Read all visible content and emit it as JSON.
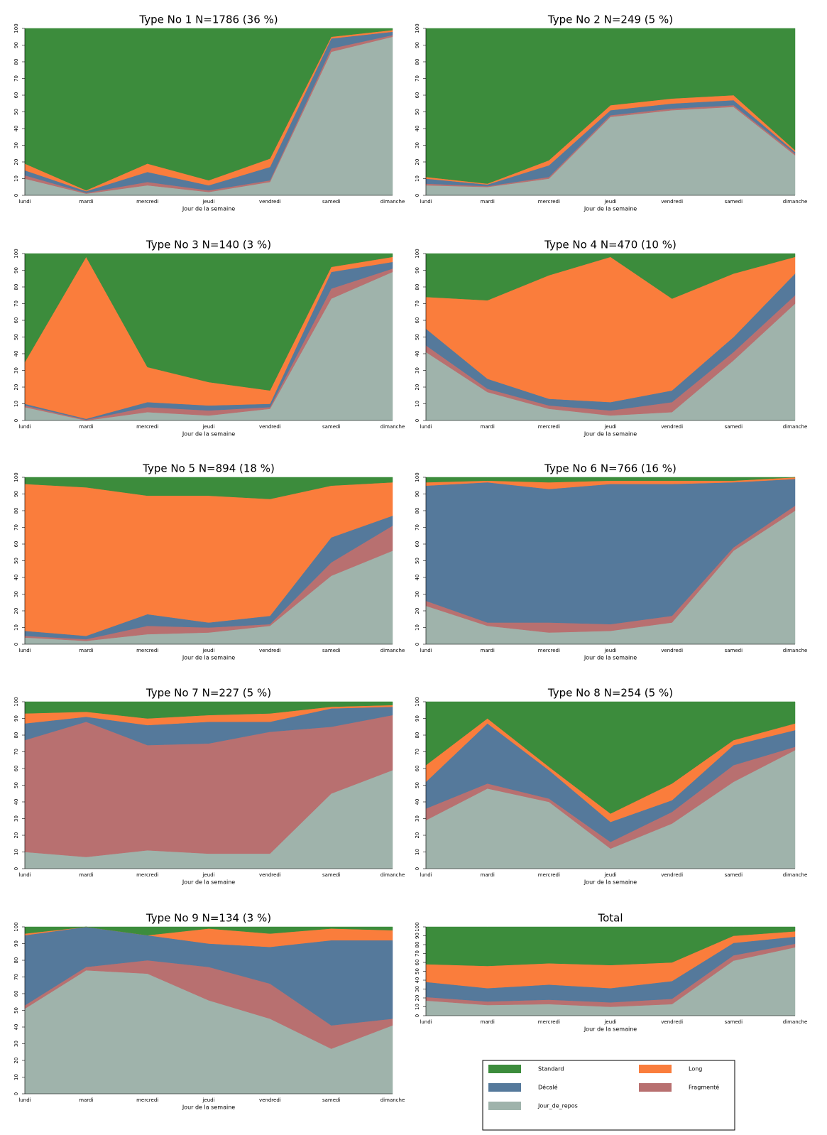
{
  "chart_data": [
    {
      "type": "area",
      "title": "Type No 1 N=1786 (36 %)",
      "xlabel": "Jour de la semaine",
      "categories": [
        "lundi",
        "mardi",
        "mercredi",
        "jeudi",
        "vendredi",
        "samedi",
        "dimanche"
      ],
      "ylim": [
        0,
        100
      ],
      "yticks": [
        0,
        10,
        20,
        30,
        40,
        50,
        60,
        70,
        80,
        90,
        100
      ],
      "series": [
        {
          "name": "Jour_de_repos",
          "color": "#9fb3ab",
          "values": [
            10,
            1,
            6,
            2,
            8,
            86,
            95
          ]
        },
        {
          "name": "Fragmenté",
          "color": "#b87070",
          "values": [
            2,
            0.5,
            2,
            1,
            1,
            2,
            1
          ]
        },
        {
          "name": "Décalé",
          "color": "#55799b",
          "values": [
            3,
            1,
            6,
            3,
            8,
            6,
            2
          ]
        },
        {
          "name": "Long",
          "color": "#fa7d3c",
          "values": [
            4,
            0.5,
            5,
            3,
            5,
            1,
            1
          ]
        },
        {
          "name": "Standard",
          "color": "#3c8c3c",
          "values": [
            81,
            97,
            81,
            91,
            78,
            5,
            1
          ]
        }
      ]
    },
    {
      "type": "area",
      "title": "Type No 2 N=249 (5 %)",
      "xlabel": "Jour de la semaine",
      "categories": [
        "lundi",
        "mardi",
        "mercredi",
        "jeudi",
        "vendredi",
        "samedi",
        "dimanche"
      ],
      "ylim": [
        0,
        100
      ],
      "yticks": [
        0,
        10,
        20,
        30,
        40,
        50,
        60,
        70,
        80,
        90,
        100
      ],
      "series": [
        {
          "name": "Jour_de_repos",
          "color": "#9fb3ab",
          "values": [
            6,
            5,
            10,
            47,
            51,
            53,
            24
          ]
        },
        {
          "name": "Fragmenté",
          "color": "#b87070",
          "values": [
            1,
            0.5,
            1,
            1,
            1,
            1,
            1
          ]
        },
        {
          "name": "Décalé",
          "color": "#55799b",
          "values": [
            3,
            1,
            7,
            3,
            3,
            3,
            1
          ]
        },
        {
          "name": "Long",
          "color": "#fa7d3c",
          "values": [
            1,
            0.5,
            3,
            3,
            3,
            3,
            1
          ]
        },
        {
          "name": "Standard",
          "color": "#3c8c3c",
          "values": [
            89,
            93,
            79,
            46,
            42,
            40,
            73
          ]
        }
      ]
    },
    {
      "type": "area",
      "title": "Type No 3 N=140 (3 %)",
      "xlabel": "Jour de la semaine",
      "categories": [
        "lundi",
        "mardi",
        "mercredi",
        "jeudi",
        "vendredi",
        "samedi",
        "dimanche"
      ],
      "ylim": [
        0,
        100
      ],
      "yticks": [
        0,
        10,
        20,
        30,
        40,
        50,
        60,
        70,
        80,
        90,
        100
      ],
      "series": [
        {
          "name": "Jour_de_repos",
          "color": "#9fb3ab",
          "values": [
            8,
            0,
            5,
            3,
            7,
            73,
            89
          ]
        },
        {
          "name": "Fragmenté",
          "color": "#b87070",
          "values": [
            1,
            0.5,
            3,
            3,
            1,
            6,
            2
          ]
        },
        {
          "name": "Décalé",
          "color": "#55799b",
          "values": [
            1,
            0.5,
            3,
            3,
            2,
            10,
            4
          ]
        },
        {
          "name": "Long",
          "color": "#fa7d3c",
          "values": [
            25,
            97,
            21,
            14,
            8,
            3,
            3
          ]
        },
        {
          "name": "Standard",
          "color": "#3c8c3c",
          "values": [
            65,
            2,
            68,
            77,
            82,
            8,
            2
          ]
        }
      ]
    },
    {
      "type": "area",
      "title": "Type No 4 N=470 (10 %)",
      "xlabel": "Jour de la semaine",
      "categories": [
        "lundi",
        "mardi",
        "mercredi",
        "jeudi",
        "vendredi",
        "samedi",
        "dimanche"
      ],
      "ylim": [
        0,
        100
      ],
      "yticks": [
        0,
        10,
        20,
        30,
        40,
        50,
        60,
        70,
        80,
        90,
        100
      ],
      "series": [
        {
          "name": "Jour_de_repos",
          "color": "#9fb3ab",
          "values": [
            41,
            17,
            7,
            3,
            5,
            36,
            70
          ]
        },
        {
          "name": "Fragmenté",
          "color": "#b87070",
          "values": [
            4,
            2,
            2,
            3,
            6,
            5,
            5
          ]
        },
        {
          "name": "Décalé",
          "color": "#55799b",
          "values": [
            10,
            6,
            4,
            5,
            7,
            9,
            13
          ]
        },
        {
          "name": "Long",
          "color": "#fa7d3c",
          "values": [
            19,
            47,
            74,
            87,
            55,
            38,
            10
          ]
        },
        {
          "name": "Standard",
          "color": "#3c8c3c",
          "values": [
            26,
            28,
            13,
            2,
            27,
            12,
            2
          ]
        }
      ]
    },
    {
      "type": "area",
      "title": "Type No 5 N=894 (18 %)",
      "xlabel": "Jour de la semaine",
      "categories": [
        "lundi",
        "mardi",
        "mercredi",
        "jeudi",
        "vendredi",
        "samedi",
        "dimanche"
      ],
      "ylim": [
        0,
        100
      ],
      "yticks": [
        0,
        10,
        20,
        30,
        40,
        50,
        60,
        70,
        80,
        90,
        100
      ],
      "series": [
        {
          "name": "Jour_de_repos",
          "color": "#9fb3ab",
          "values": [
            4,
            2,
            6,
            7,
            11,
            41,
            56
          ]
        },
        {
          "name": "Fragmenté",
          "color": "#b87070",
          "values": [
            1,
            1,
            5,
            3,
            1,
            8,
            15
          ]
        },
        {
          "name": "Décalé",
          "color": "#55799b",
          "values": [
            3,
            2,
            7,
            3,
            5,
            15,
            6
          ]
        },
        {
          "name": "Long",
          "color": "#fa7d3c",
          "values": [
            88,
            89,
            71,
            76,
            70,
            31,
            20
          ]
        },
        {
          "name": "Standard",
          "color": "#3c8c3c",
          "values": [
            4,
            6,
            11,
            11,
            13,
            5,
            3
          ]
        }
      ]
    },
    {
      "type": "area",
      "title": "Type No 6 N=766 (16 %)",
      "xlabel": "Jour de la semaine",
      "categories": [
        "lundi",
        "mardi",
        "mercredi",
        "jeudi",
        "vendredi",
        "samedi",
        "dimanche"
      ],
      "ylim": [
        0,
        100
      ],
      "yticks": [
        0,
        10,
        20,
        30,
        40,
        50,
        60,
        70,
        80,
        90,
        100
      ],
      "series": [
        {
          "name": "Jour_de_repos",
          "color": "#9fb3ab",
          "values": [
            23,
            11,
            7,
            8,
            13,
            56,
            80
          ]
        },
        {
          "name": "Fragmenté",
          "color": "#b87070",
          "values": [
            3,
            2,
            6,
            4,
            4,
            2,
            3
          ]
        },
        {
          "name": "Décalé",
          "color": "#55799b",
          "values": [
            69,
            84,
            80,
            84,
            79,
            39,
            16
          ]
        },
        {
          "name": "Long",
          "color": "#fa7d3c",
          "values": [
            2,
            1,
            4,
            2,
            2,
            1,
            1
          ]
        },
        {
          "name": "Standard",
          "color": "#3c8c3c",
          "values": [
            3,
            2,
            3,
            2,
            2,
            2,
            0
          ]
        }
      ]
    },
    {
      "type": "area",
      "title": "Type No 7 N=227 (5 %)",
      "xlabel": "Jour de la semaine",
      "categories": [
        "lundi",
        "mardi",
        "mercredi",
        "jeudi",
        "vendredi",
        "samedi",
        "dimanche"
      ],
      "ylim": [
        0,
        100
      ],
      "yticks": [
        0,
        10,
        20,
        30,
        40,
        50,
        60,
        70,
        80,
        90,
        100
      ],
      "series": [
        {
          "name": "Jour_de_repos",
          "color": "#9fb3ab",
          "values": [
            10,
            7,
            11,
            9,
            9,
            45,
            59
          ]
        },
        {
          "name": "Fragmenté",
          "color": "#b87070",
          "values": [
            67,
            81,
            63,
            66,
            73,
            40,
            33
          ]
        },
        {
          "name": "Décalé",
          "color": "#55799b",
          "values": [
            10,
            3,
            12,
            13,
            6,
            11,
            5
          ]
        },
        {
          "name": "Long",
          "color": "#fa7d3c",
          "values": [
            6,
            3,
            4,
            4,
            5,
            1,
            1
          ]
        },
        {
          "name": "Standard",
          "color": "#3c8c3c",
          "values": [
            7,
            6,
            10,
            8,
            7,
            3,
            2
          ]
        }
      ]
    },
    {
      "type": "area",
      "title": "Type No 8 N=254 (5 %)",
      "xlabel": "Jour de la semaine",
      "categories": [
        "lundi",
        "mardi",
        "mercredi",
        "jeudi",
        "vendredi",
        "samedi",
        "dimanche"
      ],
      "ylim": [
        0,
        100
      ],
      "yticks": [
        0,
        10,
        20,
        30,
        40,
        50,
        60,
        70,
        80,
        90,
        100
      ],
      "series": [
        {
          "name": "Jour_de_repos",
          "color": "#9fb3ab",
          "values": [
            29,
            48,
            40,
            12,
            27,
            52,
            71
          ]
        },
        {
          "name": "Fragmenté",
          "color": "#b87070",
          "values": [
            7,
            3,
            2,
            4,
            7,
            10,
            2
          ]
        },
        {
          "name": "Décalé",
          "color": "#55799b",
          "values": [
            16,
            36,
            17,
            12,
            7,
            12,
            10
          ]
        },
        {
          "name": "Long",
          "color": "#fa7d3c",
          "values": [
            10,
            3,
            2,
            5,
            10,
            3,
            4
          ]
        },
        {
          "name": "Standard",
          "color": "#3c8c3c",
          "values": [
            38,
            10,
            39,
            67,
            49,
            23,
            13
          ]
        }
      ]
    },
    {
      "type": "area",
      "title": "Type No 9 N=134 (3 %)",
      "xlabel": "Jour de la semaine",
      "categories": [
        "lundi",
        "mardi",
        "mercredi",
        "jeudi",
        "vendredi",
        "samedi",
        "dimanche"
      ],
      "ylim": [
        0,
        100
      ],
      "yticks": [
        0,
        10,
        20,
        30,
        40,
        50,
        60,
        70,
        80,
        90,
        100
      ],
      "series": [
        {
          "name": "Jour_de_repos",
          "color": "#9fb3ab",
          "values": [
            51,
            74,
            72,
            56,
            45,
            27,
            41
          ]
        },
        {
          "name": "Fragmenté",
          "color": "#b87070",
          "values": [
            2,
            2,
            8,
            20,
            21,
            14,
            4
          ]
        },
        {
          "name": "Décalé",
          "color": "#55799b",
          "values": [
            42,
            24,
            15,
            14,
            22,
            51,
            47
          ]
        },
        {
          "name": "Long",
          "color": "#fa7d3c",
          "values": [
            1,
            0,
            0,
            9,
            8,
            7,
            6
          ]
        },
        {
          "name": "Standard",
          "color": "#3c8c3c",
          "values": [
            4,
            0,
            5,
            1,
            4,
            1,
            2
          ]
        }
      ]
    },
    {
      "type": "area",
      "title": "Total",
      "xlabel": "Jour de la semaine",
      "categories": [
        "lundi",
        "mardi",
        "mercredi",
        "jeudi",
        "vendredi",
        "samedi",
        "dimanche"
      ],
      "ylim": [
        0,
        100
      ],
      "yticks": [
        0,
        10,
        20,
        30,
        40,
        50,
        60,
        70,
        80,
        90,
        100
      ],
      "series": [
        {
          "name": "Jour_de_repos",
          "color": "#9fb3ab",
          "values": [
            17,
            12,
            13,
            10,
            13,
            62,
            77
          ]
        },
        {
          "name": "Fragmenté",
          "color": "#b87070",
          "values": [
            4,
            4,
            5,
            5,
            6,
            6,
            4
          ]
        },
        {
          "name": "Décalé",
          "color": "#55799b",
          "values": [
            17,
            15,
            17,
            16,
            20,
            14,
            8
          ]
        },
        {
          "name": "Long",
          "color": "#fa7d3c",
          "values": [
            20,
            25,
            24,
            26,
            21,
            8,
            6
          ]
        },
        {
          "name": "Standard",
          "color": "#3c8c3c",
          "values": [
            42,
            44,
            41,
            43,
            40,
            10,
            5
          ]
        }
      ]
    }
  ]
}
